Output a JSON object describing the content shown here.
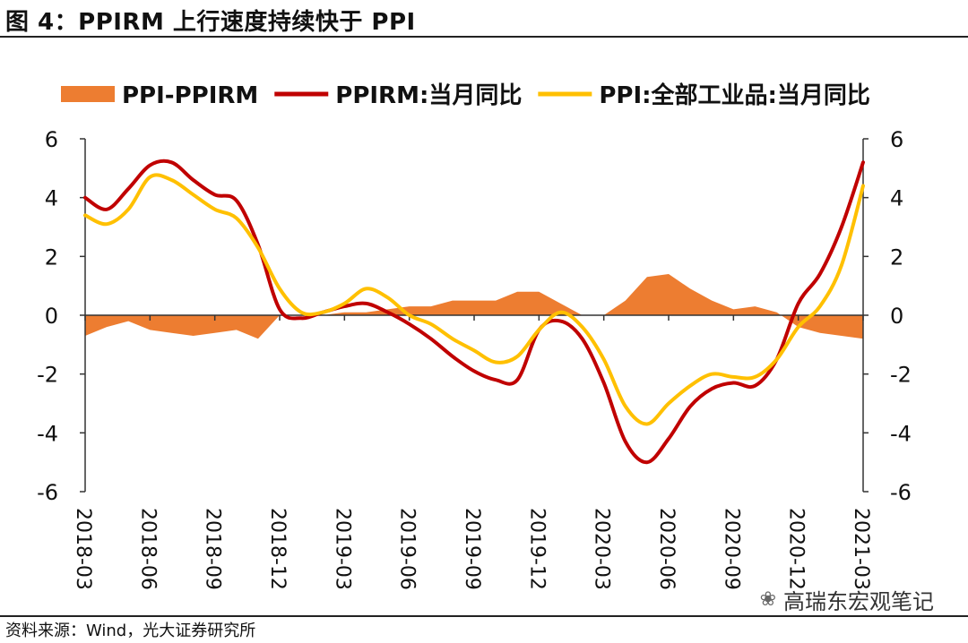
{
  "title": "图 4：PPIRM 上行速度持续快于 PPI",
  "source": "资料来源：Wind，光大证券研究所",
  "watermark": {
    "text": "高瑞东宏观笔记",
    "icon": "wechat-icon"
  },
  "chart_data": {
    "type": "line",
    "x": [
      "2018-03",
      "2018-04",
      "2018-05",
      "2018-06",
      "2018-07",
      "2018-08",
      "2018-09",
      "2018-10",
      "2018-11",
      "2018-12",
      "2019-01",
      "2019-02",
      "2019-03",
      "2019-04",
      "2019-05",
      "2019-06",
      "2019-07",
      "2019-08",
      "2019-09",
      "2019-10",
      "2019-11",
      "2019-12",
      "2020-01",
      "2020-02",
      "2020-03",
      "2020-04",
      "2020-05",
      "2020-06",
      "2020-07",
      "2020-08",
      "2020-09",
      "2020-10",
      "2020-11",
      "2020-12",
      "2021-01",
      "2021-02",
      "2021-03"
    ],
    "x_tick_labels": [
      "2018-03",
      "2018-06",
      "2018-09",
      "2018-12",
      "2019-03",
      "2019-06",
      "2019-09",
      "2019-12",
      "2020-03",
      "2020-06",
      "2020-09",
      "2020-12",
      "2021-03"
    ],
    "series": [
      {
        "name": "PPI-PPIRM",
        "type": "area",
        "color": "#ED7D31",
        "values": [
          -0.7,
          -0.4,
          -0.2,
          -0.5,
          -0.6,
          -0.7,
          -0.6,
          -0.5,
          -0.8,
          0.0,
          0.0,
          0.0,
          0.1,
          0.1,
          0.2,
          0.3,
          0.3,
          0.5,
          0.5,
          0.5,
          0.8,
          0.8,
          0.4,
          0.0,
          0.0,
          0.5,
          1.3,
          1.4,
          0.9,
          0.5,
          0.2,
          0.3,
          0.1,
          -0.4,
          -0.6,
          -0.7,
          -0.8
        ]
      },
      {
        "name": "PPIRM:当月同比",
        "type": "line",
        "color": "#C00000",
        "values": [
          4.0,
          3.6,
          4.3,
          5.1,
          5.2,
          4.6,
          4.1,
          3.9,
          2.4,
          0.2,
          -0.1,
          0.1,
          0.3,
          0.4,
          0.1,
          -0.3,
          -0.8,
          -1.4,
          -1.9,
          -2.2,
          -2.2,
          -0.5,
          -0.2,
          -0.8,
          -2.3,
          -4.3,
          -5.0,
          -4.2,
          -3.1,
          -2.5,
          -2.3,
          -2.4,
          -1.5,
          0.4,
          1.4,
          3.0,
          5.2
        ]
      },
      {
        "name": "PPI:全部工业品:当月同比",
        "type": "line",
        "color": "#FFC000",
        "values": [
          3.4,
          3.1,
          3.6,
          4.7,
          4.6,
          4.1,
          3.6,
          3.3,
          2.3,
          0.9,
          0.1,
          0.1,
          0.4,
          0.9,
          0.6,
          0.0,
          -0.3,
          -0.8,
          -1.2,
          -1.6,
          -1.4,
          -0.5,
          0.1,
          -0.4,
          -1.5,
          -3.1,
          -3.7,
          -3.0,
          -2.4,
          -2.0,
          -2.1,
          -2.1,
          -1.5,
          -0.4,
          0.3,
          1.7,
          4.4
        ]
      }
    ],
    "ylim": [
      -6,
      6
    ],
    "yticks": [
      -6,
      -4,
      -2,
      0,
      2,
      4,
      6
    ],
    "ylim_right": [
      -6,
      6
    ],
    "legend_position": "top",
    "grid": false
  }
}
